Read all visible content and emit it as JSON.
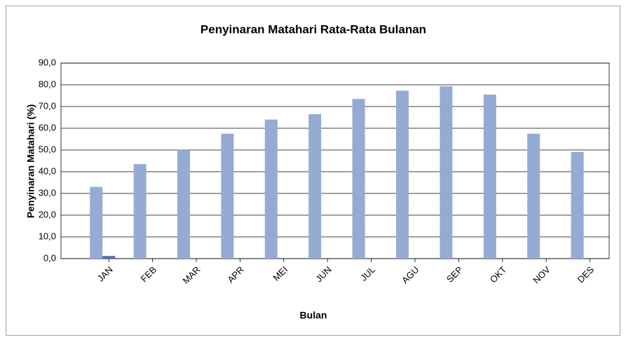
{
  "chart_data": {
    "type": "bar",
    "title": "Penyinaran Matahari Rata-Rata Bulanan",
    "x_label": "Bulan",
    "y_label": "Penyinaran Matahari (%)",
    "categories": [
      "JAN",
      "FEB",
      "MAR",
      "APR",
      "MEI",
      "JUN",
      "JUL",
      "AGU",
      "SEP",
      "OKT",
      "NOV",
      "DES"
    ],
    "series": [
      {
        "color": "#95abd3",
        "values": [
          33.0,
          43.5,
          50.3,
          57.5,
          64.0,
          66.5,
          73.5,
          77.3,
          79.3,
          75.5,
          57.5,
          49.1
        ]
      },
      {
        "color": "#4f6ea8",
        "values": [
          1.2,
          null,
          null,
          null,
          null,
          null,
          null,
          null,
          null,
          null,
          null,
          null
        ]
      }
    ],
    "ylim": [
      0,
      90
    ],
    "yticks": [
      {
        "value": 0,
        "label": "0,0"
      },
      {
        "value": 10,
        "label": "10,0"
      },
      {
        "value": 20,
        "label": "20,0"
      },
      {
        "value": 30,
        "label": "30,0"
      },
      {
        "value": 40,
        "label": "40,0"
      },
      {
        "value": 50,
        "label": "50,0"
      },
      {
        "value": 60,
        "label": "60,0"
      },
      {
        "value": 70,
        "label": "70,0"
      },
      {
        "value": 80,
        "label": "80,0"
      },
      {
        "value": 90,
        "label": "90,0"
      }
    ],
    "grid": true
  }
}
